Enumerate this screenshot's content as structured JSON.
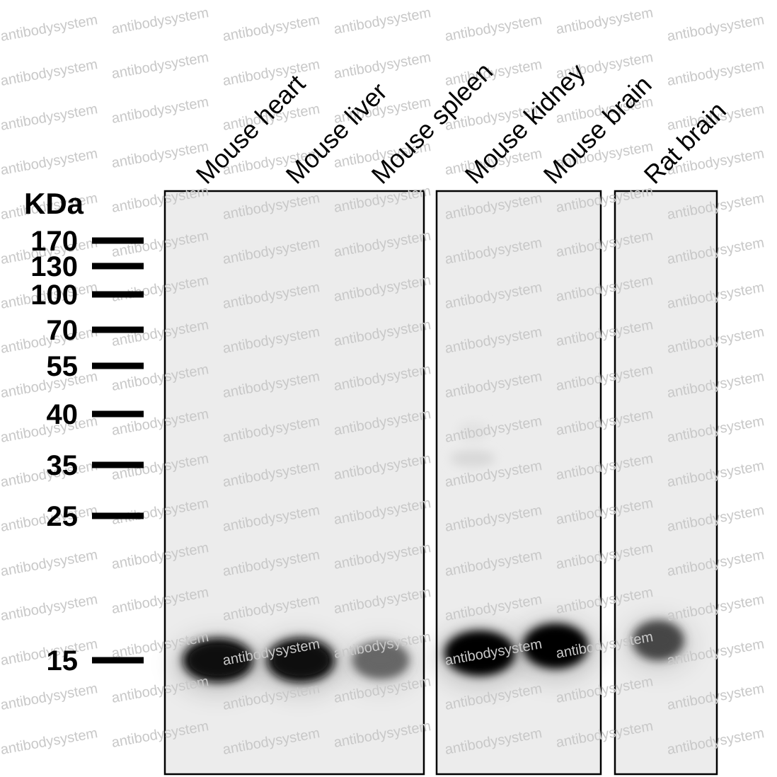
{
  "watermark": {
    "text": "antibodysystem"
  },
  "unit_label": "KDa",
  "markers": [
    {
      "label": "170",
      "kda": 170
    },
    {
      "label": "130",
      "kda": 130
    },
    {
      "label": "100",
      "kda": 100
    },
    {
      "label": "70",
      "kda": 70
    },
    {
      "label": "55",
      "kda": 55
    },
    {
      "label": "40",
      "kda": 40
    },
    {
      "label": "35",
      "kda": 35
    },
    {
      "label": "25",
      "kda": 25
    },
    {
      "label": "15",
      "kda": 15
    }
  ],
  "panels": [
    {
      "lanes": [
        "Mouse heart",
        "Mouse liver",
        "Mouse spleen"
      ]
    },
    {
      "lanes": [
        "Mouse kidney",
        "Mouse brain"
      ]
    },
    {
      "lanes": [
        "Rat brain"
      ]
    }
  ],
  "bands": [
    {
      "lane": "Mouse heart",
      "kda": 15,
      "intensity": 0.95
    },
    {
      "lane": "Mouse liver",
      "kda": 15,
      "intensity": 0.97
    },
    {
      "lane": "Mouse spleen",
      "kda": 15,
      "intensity": 0.6
    },
    {
      "lane": "Mouse kidney",
      "kda": 15,
      "intensity": 1.0
    },
    {
      "lane": "Mouse brain",
      "kda": 15,
      "intensity": 1.0
    },
    {
      "lane": "Rat brain",
      "kda": 15,
      "intensity": 0.72
    }
  ],
  "colors": {
    "membrane": "#ececec",
    "band": "#000000",
    "watermark": "#c8c8c8"
  }
}
